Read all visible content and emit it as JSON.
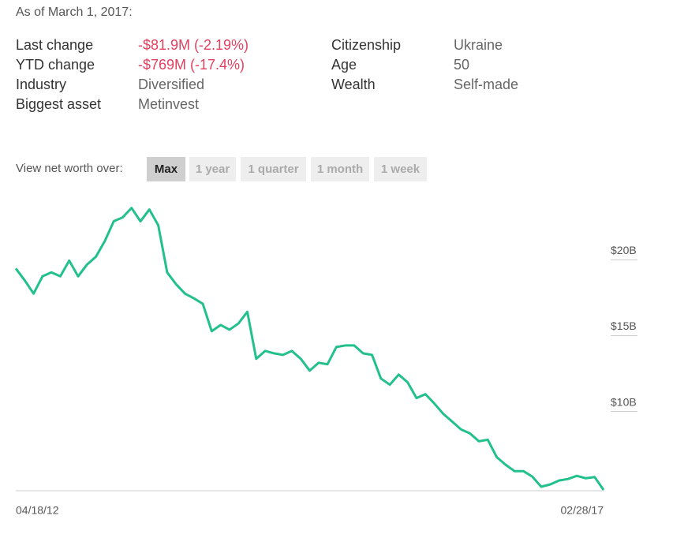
{
  "header": {
    "as_of": "As of March 1, 2017:"
  },
  "stats": {
    "left": [
      {
        "label": "Last change",
        "value": "-$81.9M (-2.19%)",
        "negative": true
      },
      {
        "label": "YTD change",
        "value": "-$769M (-17.4%)",
        "negative": true
      },
      {
        "label": "Industry",
        "value": "Diversified",
        "negative": false
      },
      {
        "label": "Biggest asset",
        "value": "Metinvest",
        "negative": false
      }
    ],
    "right": [
      {
        "label": "Citizenship",
        "value": "Ukraine"
      },
      {
        "label": "Age",
        "value": "50"
      },
      {
        "label": "Wealth",
        "value": "Self-made"
      }
    ]
  },
  "range_selector": {
    "label": "View net worth over:",
    "options": [
      "Max",
      "1 year",
      "1 quarter",
      "1 month",
      "1 week"
    ],
    "active_index": 0
  },
  "chart_data": {
    "type": "line",
    "color": "#22c08b",
    "categories": [
      "04/18/12",
      null,
      null,
      null,
      null,
      null,
      null,
      null,
      null,
      null,
      null,
      null,
      null,
      null,
      null,
      null,
      null,
      null,
      null,
      null,
      null,
      null,
      null,
      null,
      null,
      null,
      null,
      null,
      null,
      null,
      null,
      null,
      null,
      null,
      null,
      null,
      null,
      null,
      null,
      null,
      null,
      null,
      null,
      null,
      null,
      null,
      null,
      null,
      null,
      null,
      null,
      null,
      null,
      null,
      null,
      null,
      null,
      null,
      null,
      null,
      null,
      null,
      null,
      null,
      null,
      null,
      "02/28/17"
    ],
    "values": [
      18.86,
      18.08,
      17.2,
      18.34,
      18.6,
      18.34,
      19.38,
      18.34,
      19.12,
      19.64,
      20.67,
      21.97,
      22.23,
      22.85,
      21.97,
      22.75,
      21.71,
      18.6,
      17.82,
      17.2,
      16.89,
      16.53,
      14.72,
      15.13,
      14.82,
      15.23,
      16.0,
      12.9,
      13.42,
      13.26,
      13.16,
      13.42,
      12.9,
      12.12,
      12.64,
      12.54,
      13.68,
      13.78,
      13.78,
      13.26,
      13.16,
      11.6,
      11.19,
      11.86,
      11.35,
      10.31,
      10.57,
      9.95,
      9.27,
      8.76,
      8.24,
      7.98,
      7.46,
      7.56,
      6.42,
      5.91,
      5.49,
      5.49,
      5.13,
      4.46,
      4.61,
      4.87,
      4.97,
      5.18,
      5.02,
      5.1,
      4.25
    ],
    "ylim": [
      4.2,
      23.3
    ],
    "yticks": [
      {
        "value": 10,
        "label": "$10B"
      },
      {
        "value": 15,
        "label": "$15B"
      },
      {
        "value": 20,
        "label": "$20B"
      }
    ]
  }
}
